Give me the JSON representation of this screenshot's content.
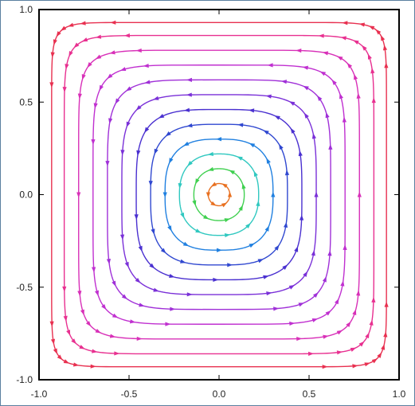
{
  "chart_data": {
    "type": "streamplot",
    "title": "",
    "xlabel": "",
    "ylabel": "",
    "xlim": [
      -1.0,
      1.0
    ],
    "ylim": [
      -1.0,
      1.0
    ],
    "x_ticks": [
      "-1.0",
      "-0.5",
      "0.0",
      "0.5",
      "1.0"
    ],
    "y_ticks": [
      "-1.0",
      "-0.5",
      "0.0",
      "0.5",
      "1.0"
    ],
    "x_tick_values": [
      -1.0,
      -0.5,
      0.0,
      0.5,
      1.0
    ],
    "y_tick_values": [
      -1.0,
      -0.5,
      0.0,
      0.5,
      1.0
    ],
    "grid": false,
    "legend": "none",
    "center": [
      0.0,
      0.0
    ],
    "rotation": "counterclockwise",
    "streamlines": [
      {
        "half_size": 0.06,
        "p": 2.0,
        "color": "#e87020"
      },
      {
        "half_size": 0.14,
        "p": 2.2,
        "color": "#40d050"
      },
      {
        "half_size": 0.22,
        "p": 2.4,
        "color": "#30c8c0"
      },
      {
        "half_size": 0.3,
        "p": 2.8,
        "color": "#2080e0"
      },
      {
        "half_size": 0.38,
        "p": 3.2,
        "color": "#3048d0"
      },
      {
        "half_size": 0.46,
        "p": 3.6,
        "color": "#4a30d0"
      },
      {
        "half_size": 0.54,
        "p": 4.2,
        "color": "#7a30d8"
      },
      {
        "half_size": 0.62,
        "p": 5.0,
        "color": "#a030d8"
      },
      {
        "half_size": 0.7,
        "p": 6.0,
        "color": "#c030d0"
      },
      {
        "half_size": 0.78,
        "p": 7.5,
        "color": "#d830b8"
      },
      {
        "half_size": 0.86,
        "p": 9.5,
        "color": "#e83090"
      },
      {
        "half_size": 0.93,
        "p": 13.0,
        "color": "#e83050"
      }
    ],
    "colors": {
      "frame": "#000000",
      "window_border": "#5a7fa0"
    }
  }
}
